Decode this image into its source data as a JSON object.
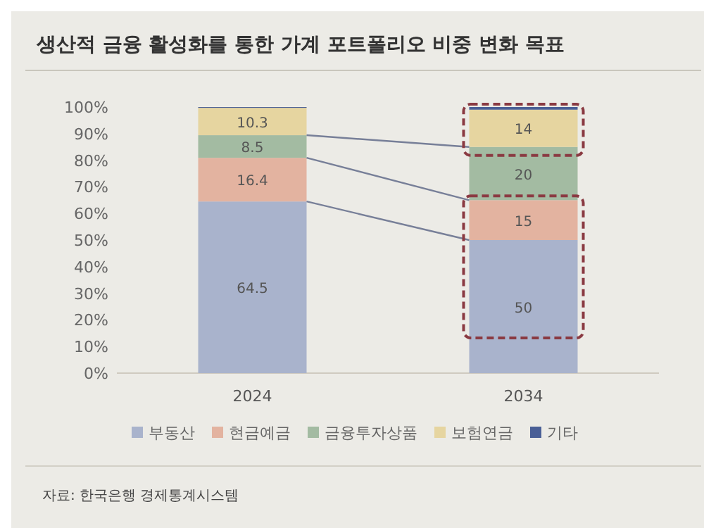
{
  "chart_data": {
    "type": "bar",
    "stacked": true,
    "title": "생산적 금융 활성화를 통한 가계 포트폴리오 비중 변화 목표",
    "categories": [
      "2024",
      "2034"
    ],
    "series": [
      {
        "name": "부동산",
        "color": "#a9b3cc",
        "values": [
          64.5,
          50
        ],
        "value_labels": [
          "64.5",
          "50"
        ]
      },
      {
        "name": "현금예금",
        "color": "#e3b3a0",
        "values": [
          16.4,
          15
        ],
        "value_labels": [
          "16.4",
          "15"
        ]
      },
      {
        "name": "금융투자상품",
        "color": "#a3bba2",
        "values": [
          8.5,
          20
        ],
        "value_labels": [
          "8.5",
          "20"
        ]
      },
      {
        "name": "보험연금",
        "color": "#e6d5a0",
        "values": [
          10.3,
          14
        ],
        "value_labels": [
          "10.3",
          "14"
        ]
      },
      {
        "name": "기타",
        "color": "#4a5f96",
        "values": [
          0.3,
          1
        ],
        "value_labels": [
          null,
          null
        ]
      }
    ],
    "ylim": [
      0,
      100
    ],
    "yticks": [
      {
        "value": 0,
        "label": "0%"
      },
      {
        "value": 10,
        "label": "10%"
      },
      {
        "value": 20,
        "label": "20%"
      },
      {
        "value": 30,
        "label": "30%"
      },
      {
        "value": 40,
        "label": "40%"
      },
      {
        "value": 50,
        "label": "50%"
      },
      {
        "value": 60,
        "label": "60%"
      },
      {
        "value": 70,
        "label": "70%"
      },
      {
        "value": 80,
        "label": "80%"
      },
      {
        "value": 90,
        "label": "90%"
      },
      {
        "value": 100,
        "label": "100%"
      }
    ],
    "legend": "bottom",
    "annotations": [
      "자료: 한국은행 경제통계시스템"
    ]
  }
}
